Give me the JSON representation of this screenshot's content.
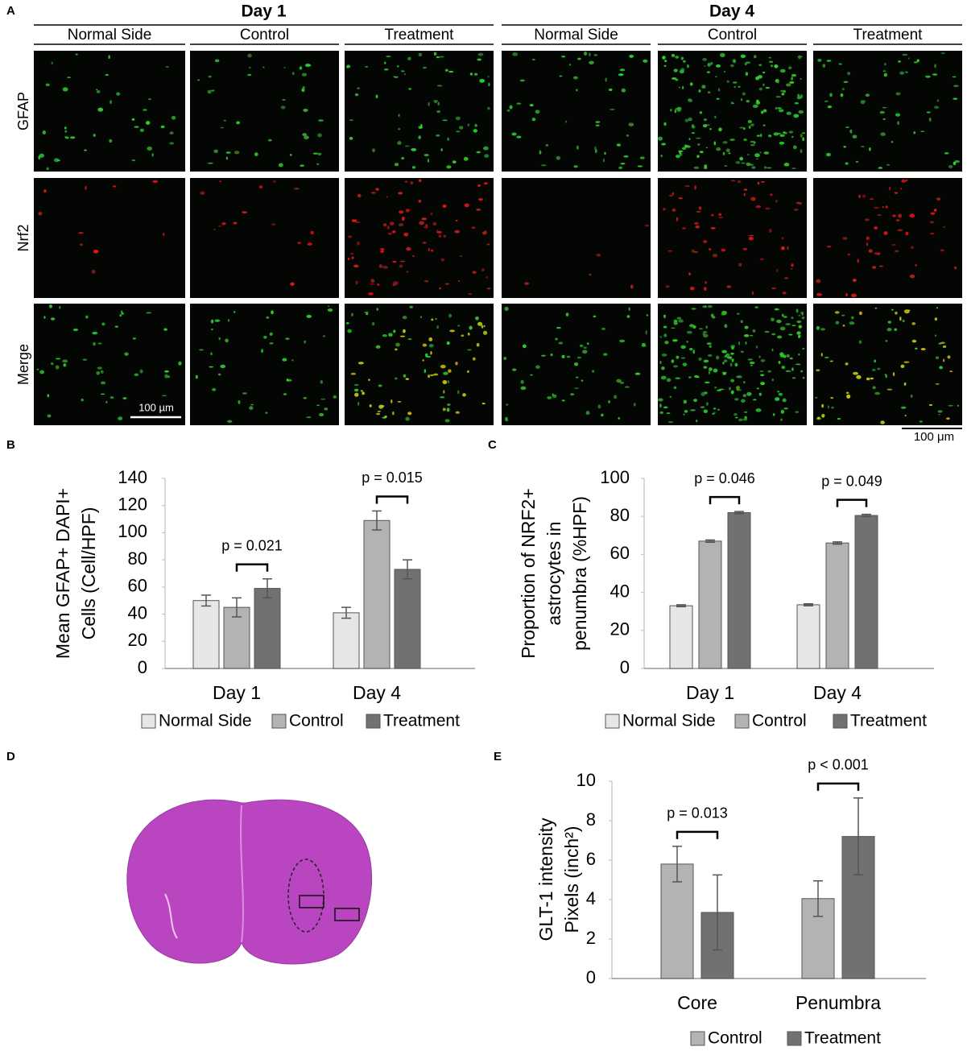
{
  "panel_labels": [
    "A",
    "B",
    "C",
    "D",
    "E"
  ],
  "panel_a": {
    "groups": [
      "Day 1",
      "Day 4"
    ],
    "columns": [
      "Normal Side",
      "Control",
      "Treatment",
      "Normal Side",
      "Control",
      "Treatment"
    ],
    "rows": [
      "GFAP",
      "Nrf2",
      "Merge"
    ],
    "scale_bars": [
      "100 µm",
      "100 μm"
    ]
  },
  "chart_data": [
    {
      "type": "bar",
      "categories": [
        "Day 1",
        "Day 4"
      ],
      "y_label": [
        "Mean GFAP+ DAPI+",
        "Cells (Cell/HPF)"
      ],
      "ylim": [
        0,
        140
      ],
      "yticks": [
        0,
        20,
        40,
        60,
        80,
        100,
        120,
        140
      ],
      "series": [
        {
          "name": "Normal Side",
          "color": "#e6e6e6",
          "values": [
            50,
            41
          ],
          "errors": [
            4,
            4
          ]
        },
        {
          "name": "Control",
          "color": "#b3b3b3",
          "values": [
            45,
            109
          ],
          "errors": [
            7,
            7
          ]
        },
        {
          "name": "Treatment",
          "color": "#717171",
          "values": [
            59,
            73
          ],
          "errors": [
            7,
            7
          ]
        }
      ],
      "annotations": [
        "p = 0.021",
        "p = 0.015"
      ]
    },
    {
      "type": "bar",
      "categories": [
        "Day 1",
        "Day 4"
      ],
      "y_label": [
        "Proportion of NRF2+",
        "astrocytes in",
        "penumbra (%HPF)"
      ],
      "ylim": [
        0,
        100
      ],
      "yticks": [
        0,
        20,
        40,
        60,
        80,
        100
      ],
      "series": [
        {
          "name": "Normal Side",
          "color": "#e6e6e6",
          "values": [
            33,
            33.5
          ],
          "errors": [
            0.5,
            0.5
          ]
        },
        {
          "name": "Control",
          "color": "#b3b3b3",
          "values": [
            67,
            66
          ],
          "errors": [
            0.6,
            0.6
          ]
        },
        {
          "name": "Treatment",
          "color": "#717171",
          "values": [
            82,
            80.5
          ],
          "errors": [
            0.6,
            0.6
          ]
        }
      ],
      "annotations": [
        "p = 0.046",
        "p = 0.049"
      ]
    },
    {
      "type": "bar",
      "categories": [
        "Core",
        "Penumbra"
      ],
      "y_label": [
        "GLT-1 intensity",
        "Pixels (inch²)"
      ],
      "ylim": [
        0,
        10
      ],
      "yticks": [
        0,
        2,
        4,
        6,
        8,
        10
      ],
      "series": [
        {
          "name": "Control",
          "color": "#b3b3b3",
          "values": [
            5.8,
            4.05
          ],
          "errors": [
            0.9,
            0.9
          ]
        },
        {
          "name": "Treatment",
          "color": "#717171",
          "values": [
            3.35,
            7.2
          ],
          "errors": [
            1.9,
            1.95
          ]
        }
      ],
      "annotations": [
        "p = 0.013",
        "p < 0.001"
      ]
    }
  ]
}
